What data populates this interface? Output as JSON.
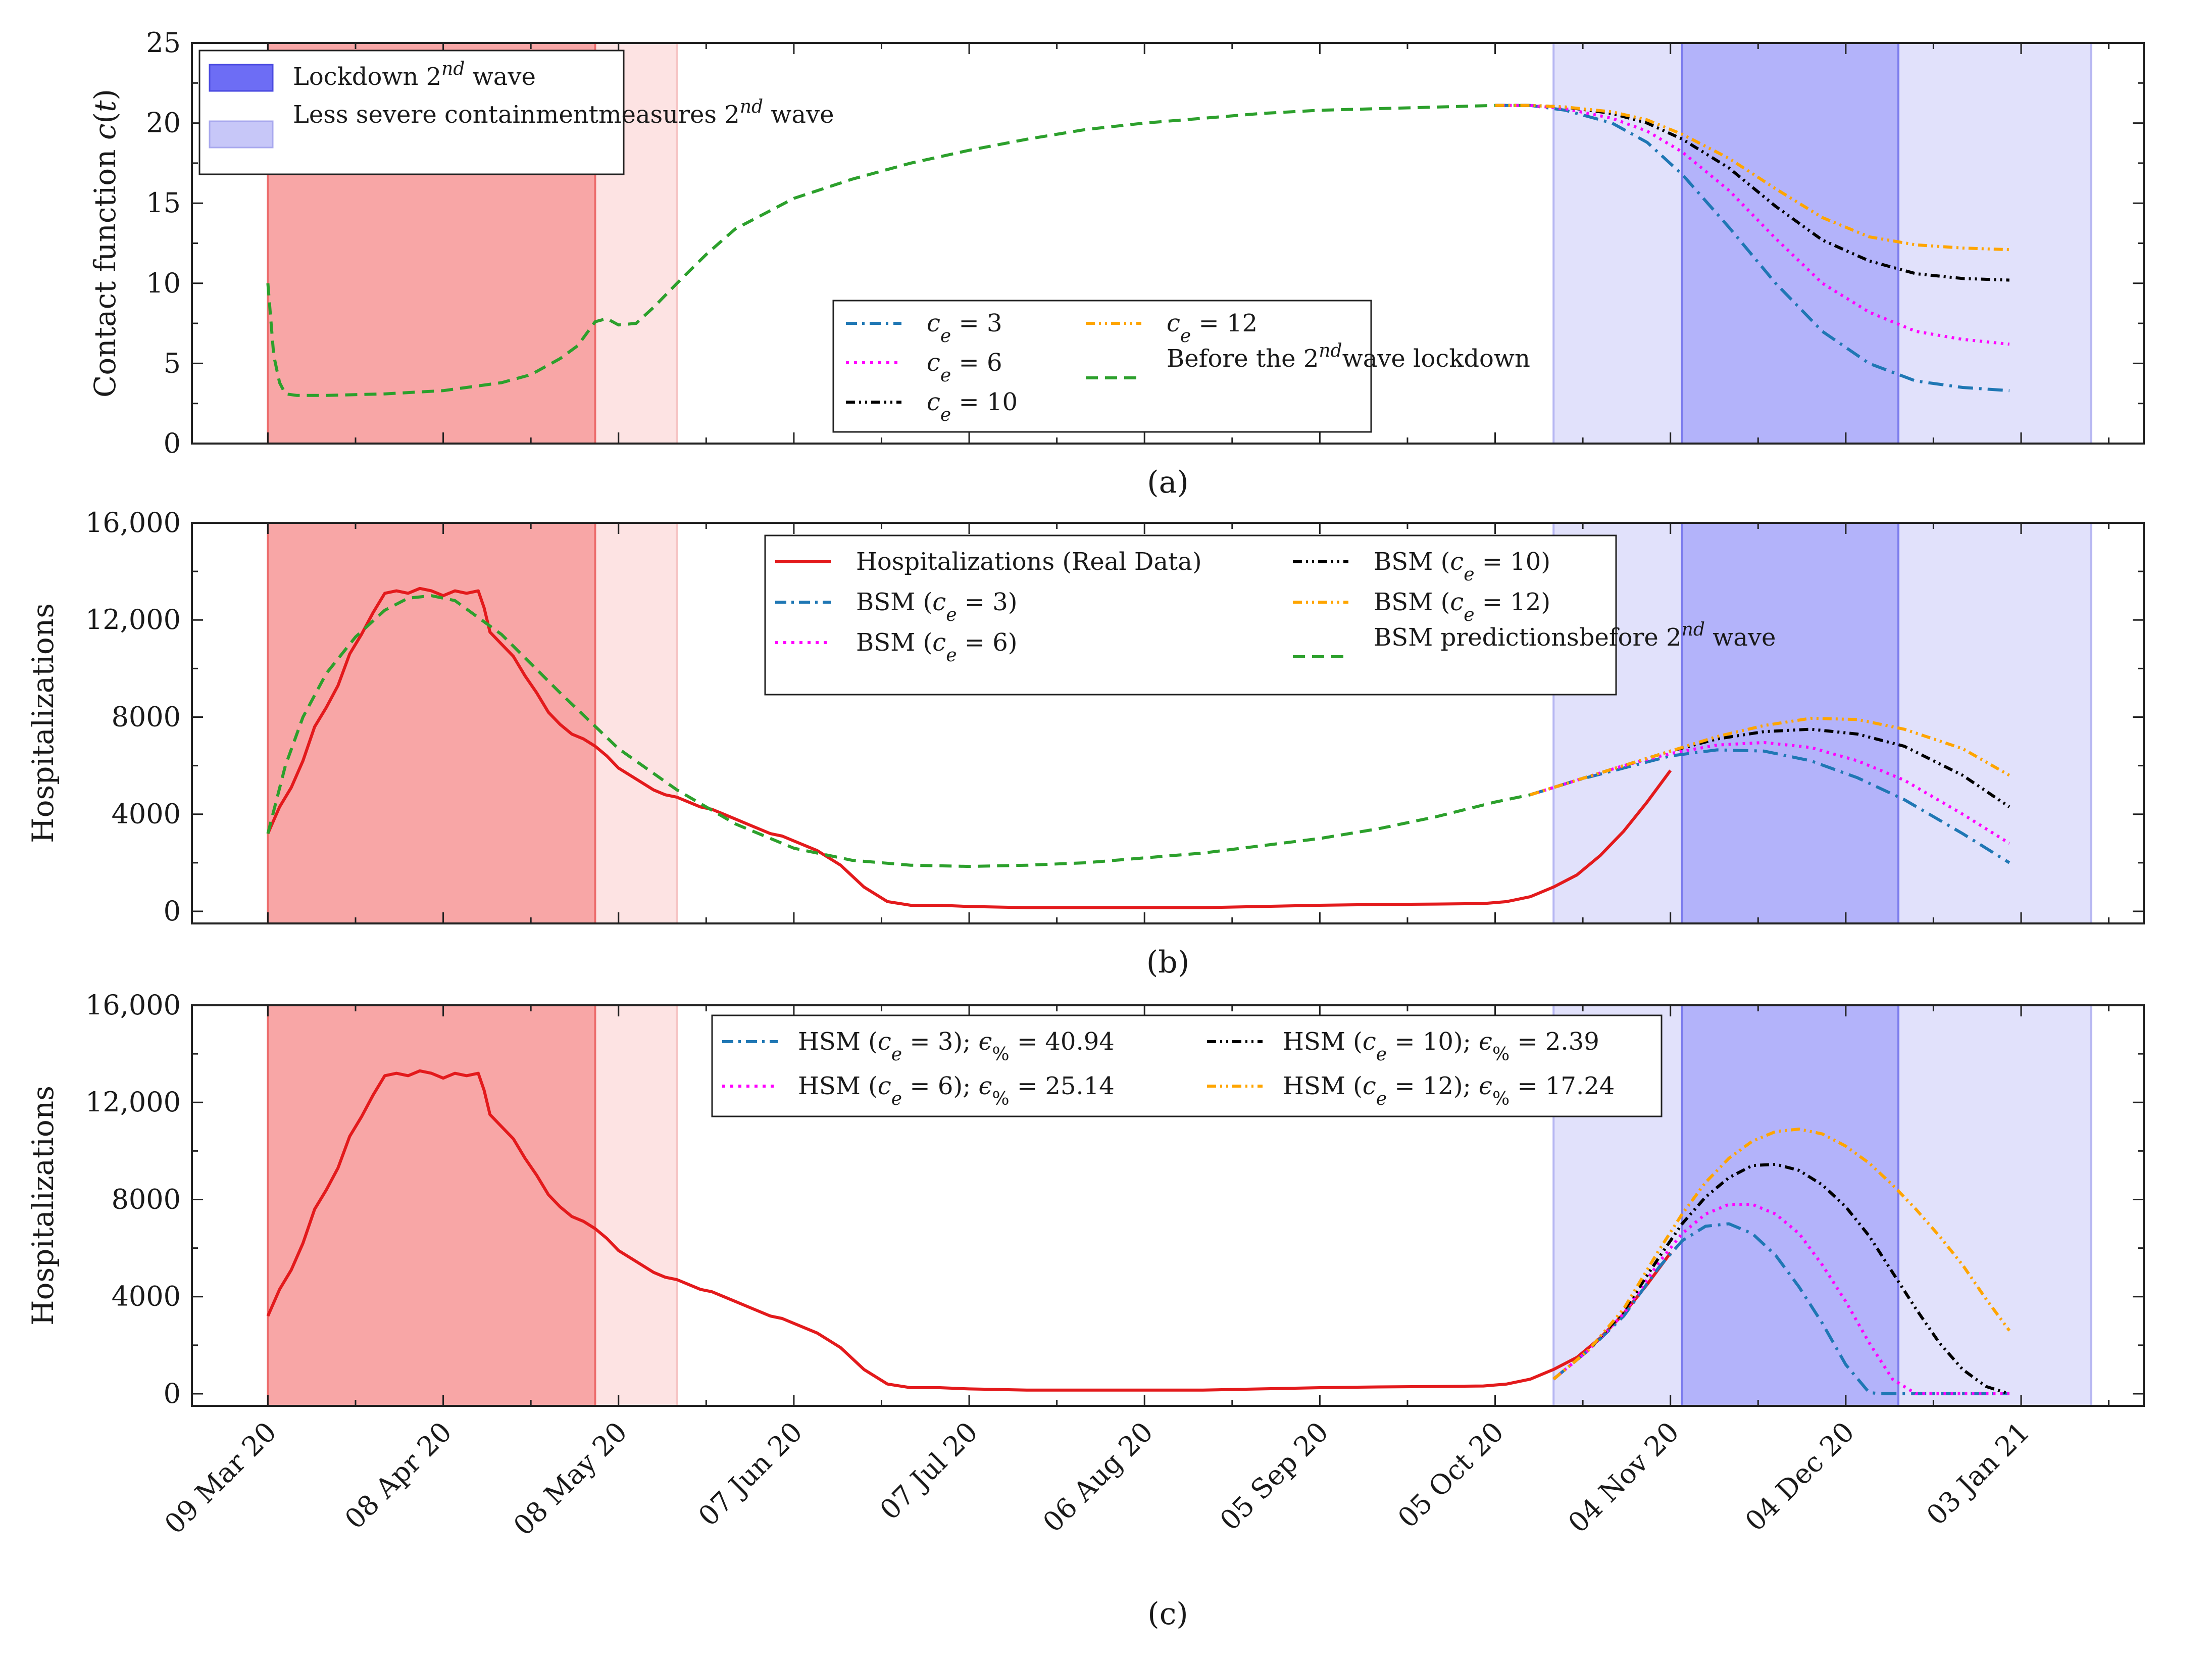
{
  "x_axis": {
    "ticks": [
      "09 Mar 20",
      "08 Apr 20",
      "08 May 20",
      "07 Jun 20",
      "07 Jul 20",
      "06 Aug 20",
      "05 Sep 20",
      "05 Oct 20",
      "04 Nov 20",
      "04 Dec 20",
      "03 Jan 21"
    ],
    "tick_days": [
      0,
      30,
      60,
      90,
      120,
      150,
      180,
      210,
      240,
      270,
      300
    ],
    "range_days": [
      -13,
      321
    ]
  },
  "shaded_regions": [
    {
      "id": "lockdown-1st-wave",
      "start_day": 0,
      "end_day": 56,
      "color": "#f8a6a6"
    },
    {
      "id": "less-severe-1st-wave",
      "start_day": 56,
      "end_day": 70,
      "color": "#fde3e3"
    },
    {
      "id": "less-severe-2nd-wave-a",
      "start_day": 220,
      "end_day": 242,
      "color": "#e1e1fb"
    },
    {
      "id": "lockdown-2nd-wave",
      "start_day": 242,
      "end_day": 279,
      "color": "#b3b3fa"
    },
    {
      "id": "less-severe-2nd-wave-b",
      "start_day": 279,
      "end_day": 312,
      "color": "#e1e1fb"
    }
  ],
  "colors": {
    "real": "#e31a1c",
    "ce3": "#1f77b4",
    "ce6": "#ff00ff",
    "ce10": "#000000",
    "ce12": "#ffa500",
    "before": "#2ca02c"
  },
  "chart_data": [
    {
      "type": "line",
      "panel_label": "(a)",
      "ylabel": "Contact function c(t)",
      "ylim": [
        0,
        25
      ],
      "y_ticks": [
        0,
        5,
        10,
        15,
        20,
        25
      ],
      "y_tick_labels": [
        "0",
        "5",
        "10",
        "15",
        "20",
        "25"
      ],
      "legend_shading": [
        {
          "label": "Lockdown 2nd wave",
          "color": "#6d6df5"
        },
        {
          "label": "Less severe containment measures 2nd wave",
          "color": "#c7c7f8"
        }
      ],
      "legend_lines": [
        {
          "label": "ce = 3",
          "series": "ce3"
        },
        {
          "label": "ce = 6",
          "series": "ce6"
        },
        {
          "label": "ce = 10",
          "series": "ce10"
        },
        {
          "label": "ce = 12",
          "series": "ce12"
        },
        {
          "label": "Before the 2nd wave lockdown",
          "series": "before"
        }
      ],
      "series": [
        {
          "name": "before",
          "style": "dashed",
          "x": [
            0,
            1,
            2,
            3,
            5,
            10,
            20,
            30,
            40,
            45,
            50,
            53,
            56,
            58,
            60,
            63,
            66,
            70,
            75,
            80,
            90,
            100,
            110,
            120,
            130,
            140,
            150,
            160,
            170,
            180,
            190,
            200,
            210,
            216
          ],
          "y": [
            10,
            5.5,
            3.8,
            3.1,
            3.0,
            3.0,
            3.1,
            3.3,
            3.8,
            4.3,
            5.3,
            6.1,
            7.6,
            7.8,
            7.4,
            7.5,
            8.5,
            10.0,
            11.8,
            13.4,
            15.3,
            16.5,
            17.5,
            18.3,
            19.0,
            19.6,
            20.0,
            20.3,
            20.6,
            20.8,
            20.9,
            21.0,
            21.1,
            21.1
          ]
        },
        {
          "name": "ce3",
          "style": "dashdot",
          "x": [
            210,
            216,
            222,
            230,
            236,
            242,
            250,
            258,
            266,
            274,
            282,
            290,
            298
          ],
          "y": [
            21.1,
            21.1,
            20.8,
            20.0,
            18.8,
            16.8,
            13.5,
            10.0,
            7.0,
            5.0,
            3.9,
            3.5,
            3.3
          ]
        },
        {
          "name": "ce6",
          "style": "dotted",
          "x": [
            210,
            216,
            222,
            230,
            236,
            242,
            250,
            258,
            266,
            274,
            282,
            290,
            298
          ],
          "y": [
            21.1,
            21.1,
            20.9,
            20.3,
            19.5,
            18.2,
            15.8,
            12.8,
            10.0,
            8.2,
            7.0,
            6.5,
            6.2
          ]
        },
        {
          "name": "ce10",
          "style": "dashdotdot",
          "x": [
            210,
            216,
            222,
            230,
            236,
            242,
            250,
            258,
            266,
            274,
            282,
            290,
            298
          ],
          "y": [
            21.1,
            21.1,
            21.0,
            20.6,
            20.0,
            19.0,
            17.2,
            14.8,
            12.7,
            11.4,
            10.6,
            10.3,
            10.2
          ]
        },
        {
          "name": "ce12",
          "style": "dashdotdot",
          "x": [
            210,
            216,
            222,
            230,
            236,
            242,
            250,
            258,
            266,
            274,
            282,
            290,
            298
          ],
          "y": [
            21.1,
            21.1,
            21.0,
            20.7,
            20.2,
            19.3,
            17.8,
            15.9,
            14.1,
            12.9,
            12.4,
            12.2,
            12.1
          ]
        }
      ]
    },
    {
      "type": "line",
      "panel_label": "(b)",
      "ylabel": "Hospitalizations",
      "ylim": [
        -500,
        16000
      ],
      "y_ticks": [
        0,
        4000,
        8000,
        12000,
        16000
      ],
      "y_tick_labels": [
        "0",
        "4000",
        "8000",
        "12,000",
        "16,000"
      ],
      "legend_lines": [
        {
          "label": "Hospitalizations (Real Data)",
          "series": "real"
        },
        {
          "label": "BSM (ce = 3)",
          "series": "ce3"
        },
        {
          "label": "BSM (ce = 6)",
          "series": "ce6"
        },
        {
          "label": "BSM (ce = 10)",
          "series": "ce10"
        },
        {
          "label": "BSM (ce = 12)",
          "series": "ce12"
        },
        {
          "label": "BSM predictions before 2nd wave",
          "series": "before"
        }
      ],
      "series": [
        {
          "name": "real",
          "style": "solid",
          "x": [
            0,
            2,
            4,
            6,
            8,
            10,
            12,
            14,
            16,
            18,
            20,
            22,
            24,
            26,
            28,
            30,
            32,
            34,
            36,
            37,
            38,
            40,
            42,
            44,
            46,
            48,
            50,
            52,
            54,
            56,
            58,
            60,
            62,
            64,
            66,
            68,
            70,
            72,
            74,
            76,
            78,
            80,
            82,
            84,
            86,
            88,
            90,
            94,
            98,
            102,
            106,
            110,
            115,
            120,
            130,
            140,
            150,
            160,
            170,
            180,
            190,
            200,
            208,
            212,
            216,
            220,
            224,
            228,
            232,
            236,
            240
          ],
          "y": [
            3200,
            4300,
            5100,
            6200,
            7600,
            8400,
            9300,
            10600,
            11400,
            12300,
            13100,
            13200,
            13100,
            13300,
            13200,
            13000,
            13200,
            13100,
            13200,
            12500,
            11500,
            11000,
            10500,
            9700,
            9000,
            8200,
            7700,
            7300,
            7100,
            6800,
            6400,
            5900,
            5600,
            5300,
            5000,
            4800,
            4700,
            4500,
            4300,
            4200,
            4000,
            3800,
            3600,
            3400,
            3200,
            3100,
            2900,
            2500,
            1900,
            1000,
            400,
            250,
            250,
            200,
            150,
            150,
            150,
            150,
            200,
            250,
            280,
            300,
            320,
            400,
            600,
            1000,
            1500,
            2300,
            3300,
            4500,
            5800
          ]
        },
        {
          "name": "before",
          "style": "dashed",
          "x": [
            0,
            3,
            6,
            10,
            15,
            20,
            24,
            28,
            32,
            40,
            50,
            60,
            70,
            80,
            90,
            100,
            110,
            120,
            130,
            140,
            150,
            160,
            170,
            180,
            190,
            200,
            210,
            216
          ],
          "y": [
            3200,
            6000,
            8000,
            9800,
            11300,
            12400,
            12900,
            13000,
            12800,
            11400,
            9000,
            6700,
            5000,
            3600,
            2600,
            2100,
            1900,
            1850,
            1900,
            2000,
            2200,
            2400,
            2700,
            3000,
            3400,
            3900,
            4500,
            4800
          ]
        },
        {
          "name": "ce3",
          "style": "dashdot",
          "x": [
            216,
            224,
            232,
            240,
            248,
            256,
            264,
            272,
            280,
            290,
            298
          ],
          "y": [
            4800,
            5400,
            5900,
            6400,
            6650,
            6600,
            6200,
            5500,
            4600,
            3200,
            2000
          ]
        },
        {
          "name": "ce6",
          "style": "dotted",
          "x": [
            216,
            224,
            232,
            240,
            248,
            256,
            264,
            272,
            280,
            290,
            298
          ],
          "y": [
            4800,
            5400,
            6000,
            6500,
            6850,
            6950,
            6750,
            6200,
            5400,
            4000,
            2800
          ]
        },
        {
          "name": "ce10",
          "style": "dashdotdot",
          "x": [
            216,
            224,
            232,
            240,
            248,
            256,
            264,
            272,
            280,
            290,
            298
          ],
          "y": [
            4800,
            5400,
            6000,
            6600,
            7100,
            7400,
            7500,
            7300,
            6800,
            5600,
            4300
          ]
        },
        {
          "name": "ce12",
          "style": "dashdotdot",
          "x": [
            216,
            224,
            232,
            240,
            248,
            256,
            264,
            272,
            280,
            290,
            298
          ],
          "y": [
            4800,
            5400,
            6000,
            6600,
            7200,
            7650,
            7950,
            7900,
            7500,
            6700,
            5600
          ]
        }
      ]
    },
    {
      "type": "line",
      "panel_label": "(c)",
      "ylabel": "Hospitalizations",
      "ylim": [
        -500,
        16000
      ],
      "y_ticks": [
        0,
        4000,
        8000,
        12000,
        16000
      ],
      "y_tick_labels": [
        "0",
        "4000",
        "8000",
        "12,000",
        "16,000"
      ],
      "legend_lines": [
        {
          "label": "HSM (ce = 3); ε% = 40.94",
          "series": "ce3"
        },
        {
          "label": "HSM (ce = 6); ε% = 25.14",
          "series": "ce6"
        },
        {
          "label": "HSM (ce = 10); ε% = 2.39",
          "series": "ce10"
        },
        {
          "label": "HSM (ce = 12); ε% = 17.24",
          "series": "ce12"
        }
      ],
      "series": [
        {
          "name": "real",
          "style": "solid",
          "x": [
            0,
            2,
            4,
            6,
            8,
            10,
            12,
            14,
            16,
            18,
            20,
            22,
            24,
            26,
            28,
            30,
            32,
            34,
            36,
            37,
            38,
            40,
            42,
            44,
            46,
            48,
            50,
            52,
            54,
            56,
            58,
            60,
            62,
            64,
            66,
            68,
            70,
            72,
            74,
            76,
            78,
            80,
            82,
            84,
            86,
            88,
            90,
            94,
            98,
            102,
            106,
            110,
            115,
            120,
            130,
            140,
            150,
            160,
            170,
            180,
            190,
            200,
            208,
            212,
            216,
            220,
            224,
            228,
            232,
            236,
            240
          ],
          "y": [
            3200,
            4300,
            5100,
            6200,
            7600,
            8400,
            9300,
            10600,
            11400,
            12300,
            13100,
            13200,
            13100,
            13300,
            13200,
            13000,
            13200,
            13100,
            13200,
            12500,
            11500,
            11000,
            10500,
            9700,
            9000,
            8200,
            7700,
            7300,
            7100,
            6800,
            6400,
            5900,
            5600,
            5300,
            5000,
            4800,
            4700,
            4500,
            4300,
            4200,
            4000,
            3800,
            3600,
            3400,
            3200,
            3100,
            2900,
            2500,
            1900,
            1000,
            400,
            250,
            250,
            200,
            150,
            150,
            150,
            150,
            200,
            250,
            280,
            300,
            320,
            400,
            600,
            1000,
            1500,
            2300,
            3300,
            4500,
            5800
          ]
        },
        {
          "name": "ce3",
          "style": "dashdot",
          "x": [
            220,
            226,
            232,
            238,
            242,
            246,
            250,
            254,
            258,
            262,
            266,
            270,
            274,
            276,
            298
          ],
          "y": [
            600,
            1800,
            3200,
            5200,
            6300,
            6900,
            7000,
            6600,
            5700,
            4400,
            2900,
            1200,
            50,
            0,
            0
          ]
        },
        {
          "name": "ce6",
          "style": "dotted",
          "x": [
            220,
            226,
            232,
            238,
            242,
            246,
            250,
            254,
            258,
            262,
            266,
            270,
            274,
            278,
            282,
            298
          ],
          "y": [
            600,
            1800,
            3300,
            5400,
            6600,
            7400,
            7800,
            7800,
            7400,
            6600,
            5300,
            3800,
            2100,
            600,
            0,
            0
          ]
        },
        {
          "name": "ce10",
          "style": "dashdotdot",
          "x": [
            220,
            226,
            232,
            238,
            242,
            246,
            250,
            254,
            258,
            262,
            266,
            270,
            274,
            278,
            282,
            286,
            290,
            294,
            298
          ],
          "y": [
            600,
            1800,
            3400,
            5600,
            7000,
            8100,
            8900,
            9400,
            9450,
            9200,
            8600,
            7700,
            6500,
            5000,
            3500,
            2100,
            1000,
            300,
            0
          ]
        },
        {
          "name": "ce12",
          "style": "dashdotdot",
          "x": [
            220,
            226,
            232,
            238,
            242,
            246,
            250,
            254,
            258,
            262,
            266,
            270,
            274,
            278,
            282,
            286,
            290,
            294,
            298
          ],
          "y": [
            600,
            1800,
            3500,
            5900,
            7400,
            8700,
            9700,
            10400,
            10800,
            10900,
            10700,
            10200,
            9500,
            8600,
            7600,
            6500,
            5300,
            3900,
            2600
          ]
        }
      ]
    }
  ]
}
